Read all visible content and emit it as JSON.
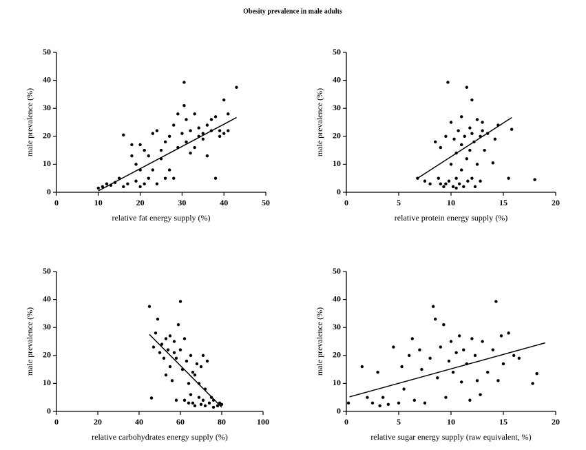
{
  "title": "Obesity prevalence in male adults",
  "chart_data": [
    {
      "type": "scatter",
      "xlabel": "relative fat energy supply (%)",
      "ylabel": "male prevalence  (%)",
      "x": [
        10,
        11,
        12,
        13,
        14,
        15,
        16,
        17,
        18,
        19,
        19,
        20,
        20,
        21,
        21,
        22,
        22,
        23,
        23,
        24,
        24,
        25,
        25,
        26,
        26,
        27,
        27,
        28,
        28,
        29,
        29,
        30,
        30.5,
        30.5,
        31,
        31,
        32,
        32,
        33,
        33,
        34,
        34,
        35,
        35,
        36,
        36,
        37,
        37,
        38,
        38,
        39,
        39,
        40,
        40,
        41,
        41,
        43,
        18,
        20,
        16
      ],
      "y": [
        1.5,
        2,
        3,
        2.5,
        3.5,
        5,
        20.5,
        3,
        17,
        4,
        10,
        2,
        17,
        3,
        15,
        5,
        13,
        8,
        21,
        3,
        22,
        12,
        15,
        5,
        18,
        8,
        20,
        5,
        24,
        16,
        28,
        21,
        39.3,
        31,
        18,
        26,
        14,
        22,
        16,
        28,
        20,
        23,
        19,
        21,
        24,
        13,
        22,
        26,
        5,
        27,
        22,
        20,
        33,
        21,
        22,
        28,
        37.5,
        13,
        8,
        2
      ],
      "fit_x": [
        10,
        43
      ],
      "fit_y": [
        0.5,
        26.7
      ],
      "xlim": [
        0,
        50
      ],
      "ylim": [
        0,
        50
      ],
      "xticks": [
        0,
        10,
        20,
        30,
        40,
        50
      ],
      "yticks": [
        0,
        10,
        20,
        30,
        40,
        50
      ],
      "color": "#000000"
    },
    {
      "type": "scatter",
      "xlabel": "relative  protein energy supply (%)",
      "ylabel": "male prevalence  (%)",
      "x": [
        6.8,
        7.5,
        8,
        8.5,
        8.8,
        9,
        9,
        9.3,
        9.5,
        9.7,
        9.8,
        10,
        10,
        10.2,
        10.3,
        10.5,
        10.5,
        10.7,
        10.8,
        11,
        11,
        11,
        11.2,
        11.3,
        11.5,
        11.5,
        11.6,
        11.8,
        11.8,
        12,
        12,
        12,
        12.2,
        12.3,
        12.5,
        12.5,
        12.8,
        12.8,
        13,
        13,
        13.2,
        13.5,
        14,
        14.2,
        14.5,
        15.5,
        15.8,
        18,
        9.5,
        10.5
      ],
      "y": [
        5,
        4,
        3,
        18,
        5,
        16,
        3,
        2,
        20,
        39.3,
        4,
        25,
        10,
        2,
        19,
        14,
        5,
        22,
        3,
        17,
        8,
        27,
        2,
        20,
        37.5,
        12,
        4,
        23,
        15,
        33,
        5,
        21,
        18,
        2,
        26,
        10,
        4,
        20,
        22,
        25,
        15,
        21,
        10.5,
        19,
        24,
        5,
        22.5,
        4.5,
        3,
        1.5
      ],
      "fit_x": [
        6.8,
        15.8
      ],
      "fit_y": [
        5,
        26.7
      ],
      "xlim": [
        0,
        20
      ],
      "ylim": [
        0,
        50
      ],
      "xticks": [
        0,
        5,
        10,
        15,
        20
      ],
      "yticks": [
        0,
        10,
        20,
        30,
        40,
        50
      ],
      "color": "#000000"
    },
    {
      "type": "scatter",
      "xlabel": "relative carbohydrates  energy supply (%)",
      "ylabel": "male prevalence (%)",
      "x": [
        45,
        46,
        47,
        48,
        49,
        50,
        51,
        52,
        53,
        54,
        55,
        55,
        56,
        57,
        58,
        59,
        60,
        60,
        61,
        62,
        62,
        63,
        64,
        65,
        65,
        66,
        67,
        67,
        68,
        69,
        69,
        70,
        70,
        71,
        72,
        72,
        73,
        74,
        75,
        76,
        76,
        78,
        79,
        80,
        58,
        64,
        53,
        57,
        66,
        71
      ],
      "y": [
        37.5,
        4.8,
        23,
        28,
        33,
        21,
        24,
        19,
        13,
        22,
        27,
        16,
        11,
        25,
        19,
        31,
        39.3,
        22,
        15,
        4,
        26,
        18,
        10,
        6,
        20,
        3,
        13,
        2,
        17,
        5,
        10,
        2.5,
        16,
        4,
        8,
        2,
        18,
        3,
        5,
        1.5,
        4,
        2,
        3,
        2.5,
        4,
        3,
        26,
        21,
        14,
        20
      ],
      "fit_x": [
        45,
        80
      ],
      "fit_y": [
        27.5,
        1.5
      ],
      "xlim": [
        0,
        100
      ],
      "ylim": [
        0,
        50
      ],
      "xticks": [
        0,
        20,
        40,
        60,
        80,
        100
      ],
      "yticks": [
        0,
        10,
        20,
        30,
        40,
        50
      ],
      "color": "#000000"
    },
    {
      "type": "scatter",
      "xlabel": "relative sugar energy supply (raw equivalent, %)",
      "ylabel": "male prevalence (%)",
      "x": [
        0.2,
        1.5,
        2,
        2.5,
        3,
        3.2,
        3.5,
        4,
        4.5,
        5,
        5.3,
        5.5,
        6,
        6.3,
        6.5,
        7,
        7.2,
        7.5,
        8,
        8.3,
        8.5,
        8.7,
        9,
        9.3,
        9.5,
        9.8,
        10,
        10.2,
        10.5,
        10.8,
        11,
        11.2,
        11.5,
        11.8,
        12,
        12.3,
        12.5,
        12.8,
        13,
        13.5,
        14,
        14.3,
        14.5,
        14.8,
        15,
        15.5,
        16,
        16.5,
        17.8,
        18.2
      ],
      "y": [
        3,
        16,
        5,
        3,
        14,
        2,
        5,
        2.5,
        23,
        3,
        16,
        8,
        20,
        26,
        4,
        22,
        15,
        3,
        19,
        37.5,
        33,
        12,
        23,
        31,
        5,
        18,
        25,
        14,
        21,
        27,
        10.5,
        22,
        17,
        4,
        26,
        20,
        11,
        6,
        25,
        14,
        22,
        39.3,
        11,
        27,
        17,
        28,
        20,
        19,
        10,
        13.5
      ],
      "fit_x": [
        0.3,
        19
      ],
      "fit_y": [
        5.2,
        24.5
      ],
      "xlim": [
        0,
        20
      ],
      "ylim": [
        0,
        50
      ],
      "xticks": [
        0,
        5,
        10,
        15,
        20
      ],
      "yticks": [
        0,
        10,
        20,
        30,
        40,
        50
      ],
      "color": "#000000"
    }
  ]
}
